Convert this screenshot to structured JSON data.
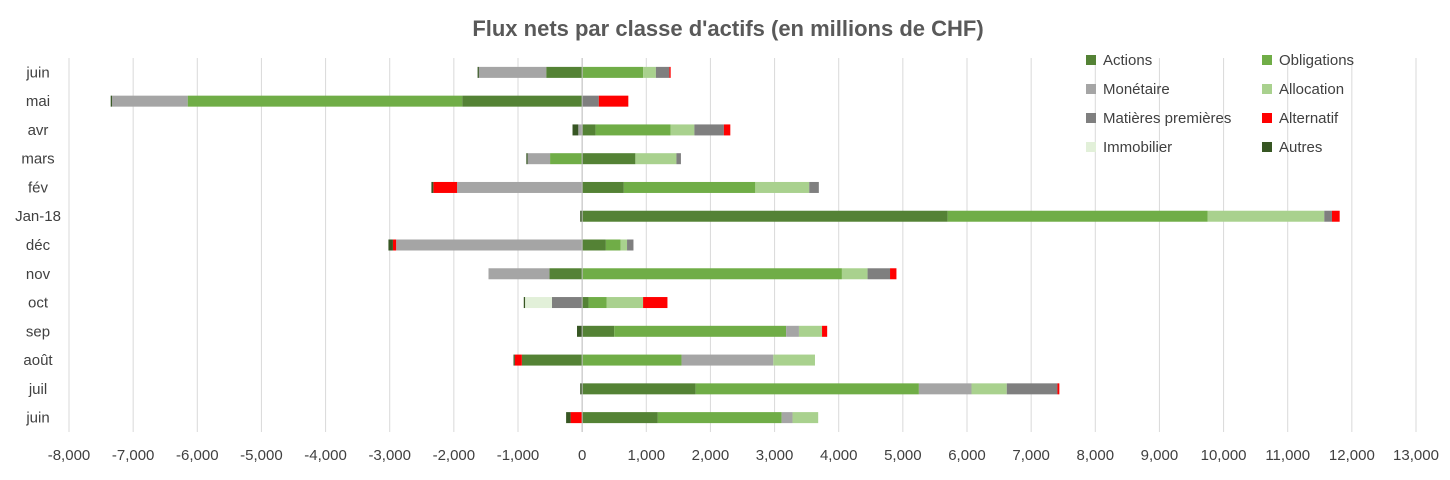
{
  "chart_data": {
    "type": "bar",
    "orientation": "horizontal",
    "stacked": true,
    "title": "Flux nets par classe d'actifs (en millions de CHF)",
    "xlabel": "",
    "ylabel": "",
    "xlim": [
      -8000,
      13000
    ],
    "x_ticks": [
      -8000,
      -7000,
      -6000,
      -5000,
      -4000,
      -3000,
      -2000,
      -1000,
      0,
      1000,
      2000,
      3000,
      4000,
      5000,
      6000,
      7000,
      8000,
      9000,
      10000,
      11000,
      12000,
      13000
    ],
    "x_tick_labels": [
      "-8,000",
      "-7,000",
      "-6,000",
      "-5,000",
      "-4,000",
      "-3,000",
      "-2,000",
      "-1,000",
      "0",
      "1,000",
      "2,000",
      "3,000",
      "4,000",
      "5,000",
      "6,000",
      "7,000",
      "8,000",
      "9,000",
      "10,000",
      "11,000",
      "12,000",
      "13,000"
    ],
    "categories": [
      "juin",
      "mai",
      "avr",
      "mars",
      "fév",
      "Jan-18",
      "déc",
      "nov",
      "oct",
      "sep",
      "août",
      "juil",
      "juin"
    ],
    "grid": "vertical",
    "legend_position": "top-right",
    "series": [
      {
        "name": "Actions",
        "color": "#548235",
        "values": [
          -560,
          -1870,
          210,
          830,
          650,
          5700,
          370,
          -510,
          100,
          500,
          -940,
          1770,
          1180
        ]
      },
      {
        "name": "Obligations",
        "color": "#70ad47",
        "values": [
          950,
          -4280,
          1170,
          -500,
          2050,
          4050,
          230,
          4050,
          280,
          2680,
          1550,
          3480,
          1930
        ]
      },
      {
        "name": "Monétaire",
        "color": "#a5a5a5",
        "values": [
          -1050,
          -1180,
          -60,
          -350,
          -1950,
          0,
          -2900,
          -950,
          0,
          200,
          1430,
          820,
          170
        ]
      },
      {
        "name": "Allocation",
        "color": "#a9d18e",
        "values": [
          200,
          0,
          370,
          640,
          840,
          1820,
          100,
          400,
          570,
          360,
          650,
          550,
          400
        ]
      },
      {
        "name": "Matières premières",
        "color": "#7f7f7f",
        "values": [
          210,
          260,
          460,
          70,
          150,
          120,
          100,
          350,
          -470,
          0,
          0,
          790,
          0
        ]
      },
      {
        "name": "Alternatif",
        "color": "#ff0000",
        "values": [
          20,
          460,
          100,
          0,
          -370,
          120,
          -50,
          100,
          380,
          80,
          -110,
          30,
          -180
        ]
      },
      {
        "name": "Immobilier",
        "color": "#e2f0d9",
        "values": [
          0,
          0,
          0,
          0,
          0,
          0,
          0,
          0,
          -420,
          0,
          0,
          0,
          0
        ]
      },
      {
        "name": "Autres",
        "color": "#375623",
        "values": [
          -20,
          -20,
          -90,
          -20,
          -30,
          -30,
          -70,
          0,
          -20,
          -80,
          -20,
          -30,
          -70
        ]
      }
    ]
  }
}
